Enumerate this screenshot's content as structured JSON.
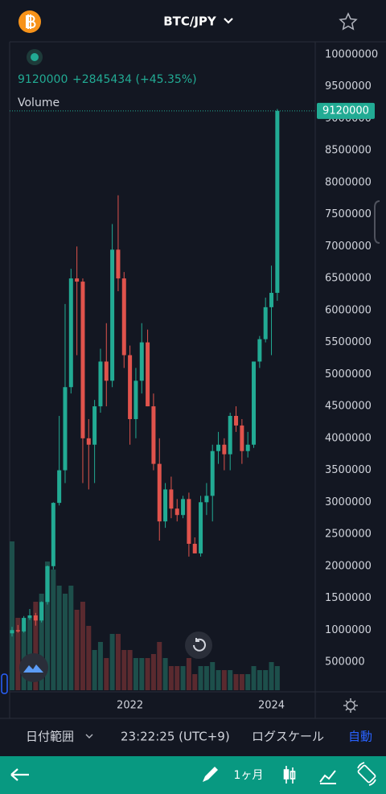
{
  "header": {
    "symbol": "BTC/JPY"
  },
  "legend": {
    "change": "+2845434",
    "change_pct": "(+45.35%)",
    "volume_label": "Volume"
  },
  "chart_data": {
    "type": "candlestick",
    "categories": [
      null,
      null,
      null,
      null,
      null,
      null,
      null,
      null,
      null,
      null,
      null,
      null,
      null,
      null,
      null,
      null,
      null,
      null,
      null,
      null,
      "2022",
      null,
      null,
      null,
      null,
      null,
      null,
      null,
      null,
      null,
      null,
      null,
      null,
      null,
      null,
      null,
      null,
      null,
      null,
      null,
      null,
      null,
      null,
      null,
      "2024",
      null
    ],
    "open": [
      950000,
      1000000,
      980000,
      1190000,
      1230000,
      1150000,
      1440000,
      2000000,
      2990000,
      3500000,
      4800000,
      6500000,
      6450000,
      4000000,
      3900000,
      4500000,
      5200000,
      4900000,
      6950000,
      6500000,
      5300000,
      4300000,
      4900000,
      5500000,
      4500000,
      3600000,
      2700000,
      3200000,
      2900000,
      2800000,
      3050000,
      2350000,
      2200000,
      3000000,
      3100000,
      3800000,
      3900000,
      3750000,
      4350000,
      4200000,
      3800000,
      3900000,
      5200000,
      5550000,
      6050000,
      6274566
    ],
    "high": [
      1050000,
      1080000,
      1220000,
      1330000,
      1270000,
      1450000,
      2010000,
      3000000,
      4350000,
      6100000,
      6650000,
      7000000,
      6500000,
      4300000,
      4600000,
      5400000,
      5800000,
      7350000,
      7800000,
      6600000,
      5450000,
      5100000,
      5800000,
      5700000,
      4700000,
      4000000,
      3300000,
      3400000,
      3050000,
      3100000,
      3150000,
      2450000,
      3100000,
      3300000,
      3900000,
      4100000,
      4000000,
      4400000,
      4500000,
      4300000,
      4100000,
      5200000,
      5600000,
      6200000,
      6700000,
      9150000
    ],
    "low": [
      900000,
      960000,
      960000,
      1160000,
      1070000,
      1120000,
      1400000,
      1950000,
      2950000,
      3300000,
      4700000,
      5300000,
      3300000,
      3200000,
      3300000,
      4400000,
      4500000,
      4800000,
      6300000,
      5100000,
      3900000,
      4000000,
      4700000,
      4500000,
      3500000,
      2400000,
      2600000,
      2750000,
      2700000,
      2750000,
      2150000,
      2200000,
      2150000,
      2800000,
      2700000,
      3600000,
      3500000,
      3500000,
      4100000,
      3600000,
      3700000,
      3850000,
      5100000,
      5500000,
      5300000,
      6150000
    ],
    "close": [
      1000000,
      980000,
      1190000,
      1230000,
      1150000,
      1440000,
      2000000,
      2990000,
      3500000,
      4800000,
      6500000,
      6450000,
      4000000,
      3900000,
      4500000,
      5200000,
      4900000,
      6950000,
      6500000,
      5300000,
      4300000,
      4900000,
      5500000,
      4500000,
      3600000,
      2700000,
      3200000,
      2900000,
      2800000,
      3050000,
      2350000,
      2200000,
      3000000,
      3100000,
      3800000,
      3900000,
      3750000,
      4350000,
      4200000,
      3800000,
      3900000,
      5200000,
      5550000,
      6050000,
      6274566,
      9120000
    ],
    "volume": [
      185,
      90,
      90,
      90,
      110,
      120,
      160,
      150,
      130,
      120,
      130,
      100,
      110,
      80,
      50,
      60,
      40,
      70,
      70,
      50,
      50,
      40,
      40,
      40,
      45,
      60,
      40,
      30,
      30,
      30,
      40,
      20,
      30,
      30,
      35,
      25,
      25,
      25,
      20,
      20,
      20,
      30,
      25,
      25,
      35,
      30
    ],
    "up_color": "#22ab94",
    "down_color": "#e0534c",
    "volume_up_color": "#1d4f4b",
    "volume_down_color": "#5a2a2f",
    "ylim": [
      60000,
      10200000
    ],
    "yticks": [
      500000,
      1000000,
      1500000,
      2000000,
      2500000,
      3000000,
      3500000,
      4000000,
      4500000,
      5000000,
      5500000,
      6000000,
      6500000,
      7000000,
      7500000,
      8000000,
      8500000,
      9000000,
      9500000,
      10000000
    ],
    "grid": false
  },
  "toolbar": {
    "date_range": "日付範囲",
    "time": "23:22:25 (UTC+9)",
    "log_scale": "ログスケール",
    "auto": "自動"
  },
  "bottom_bar": {
    "interval": "1ヶ月"
  }
}
